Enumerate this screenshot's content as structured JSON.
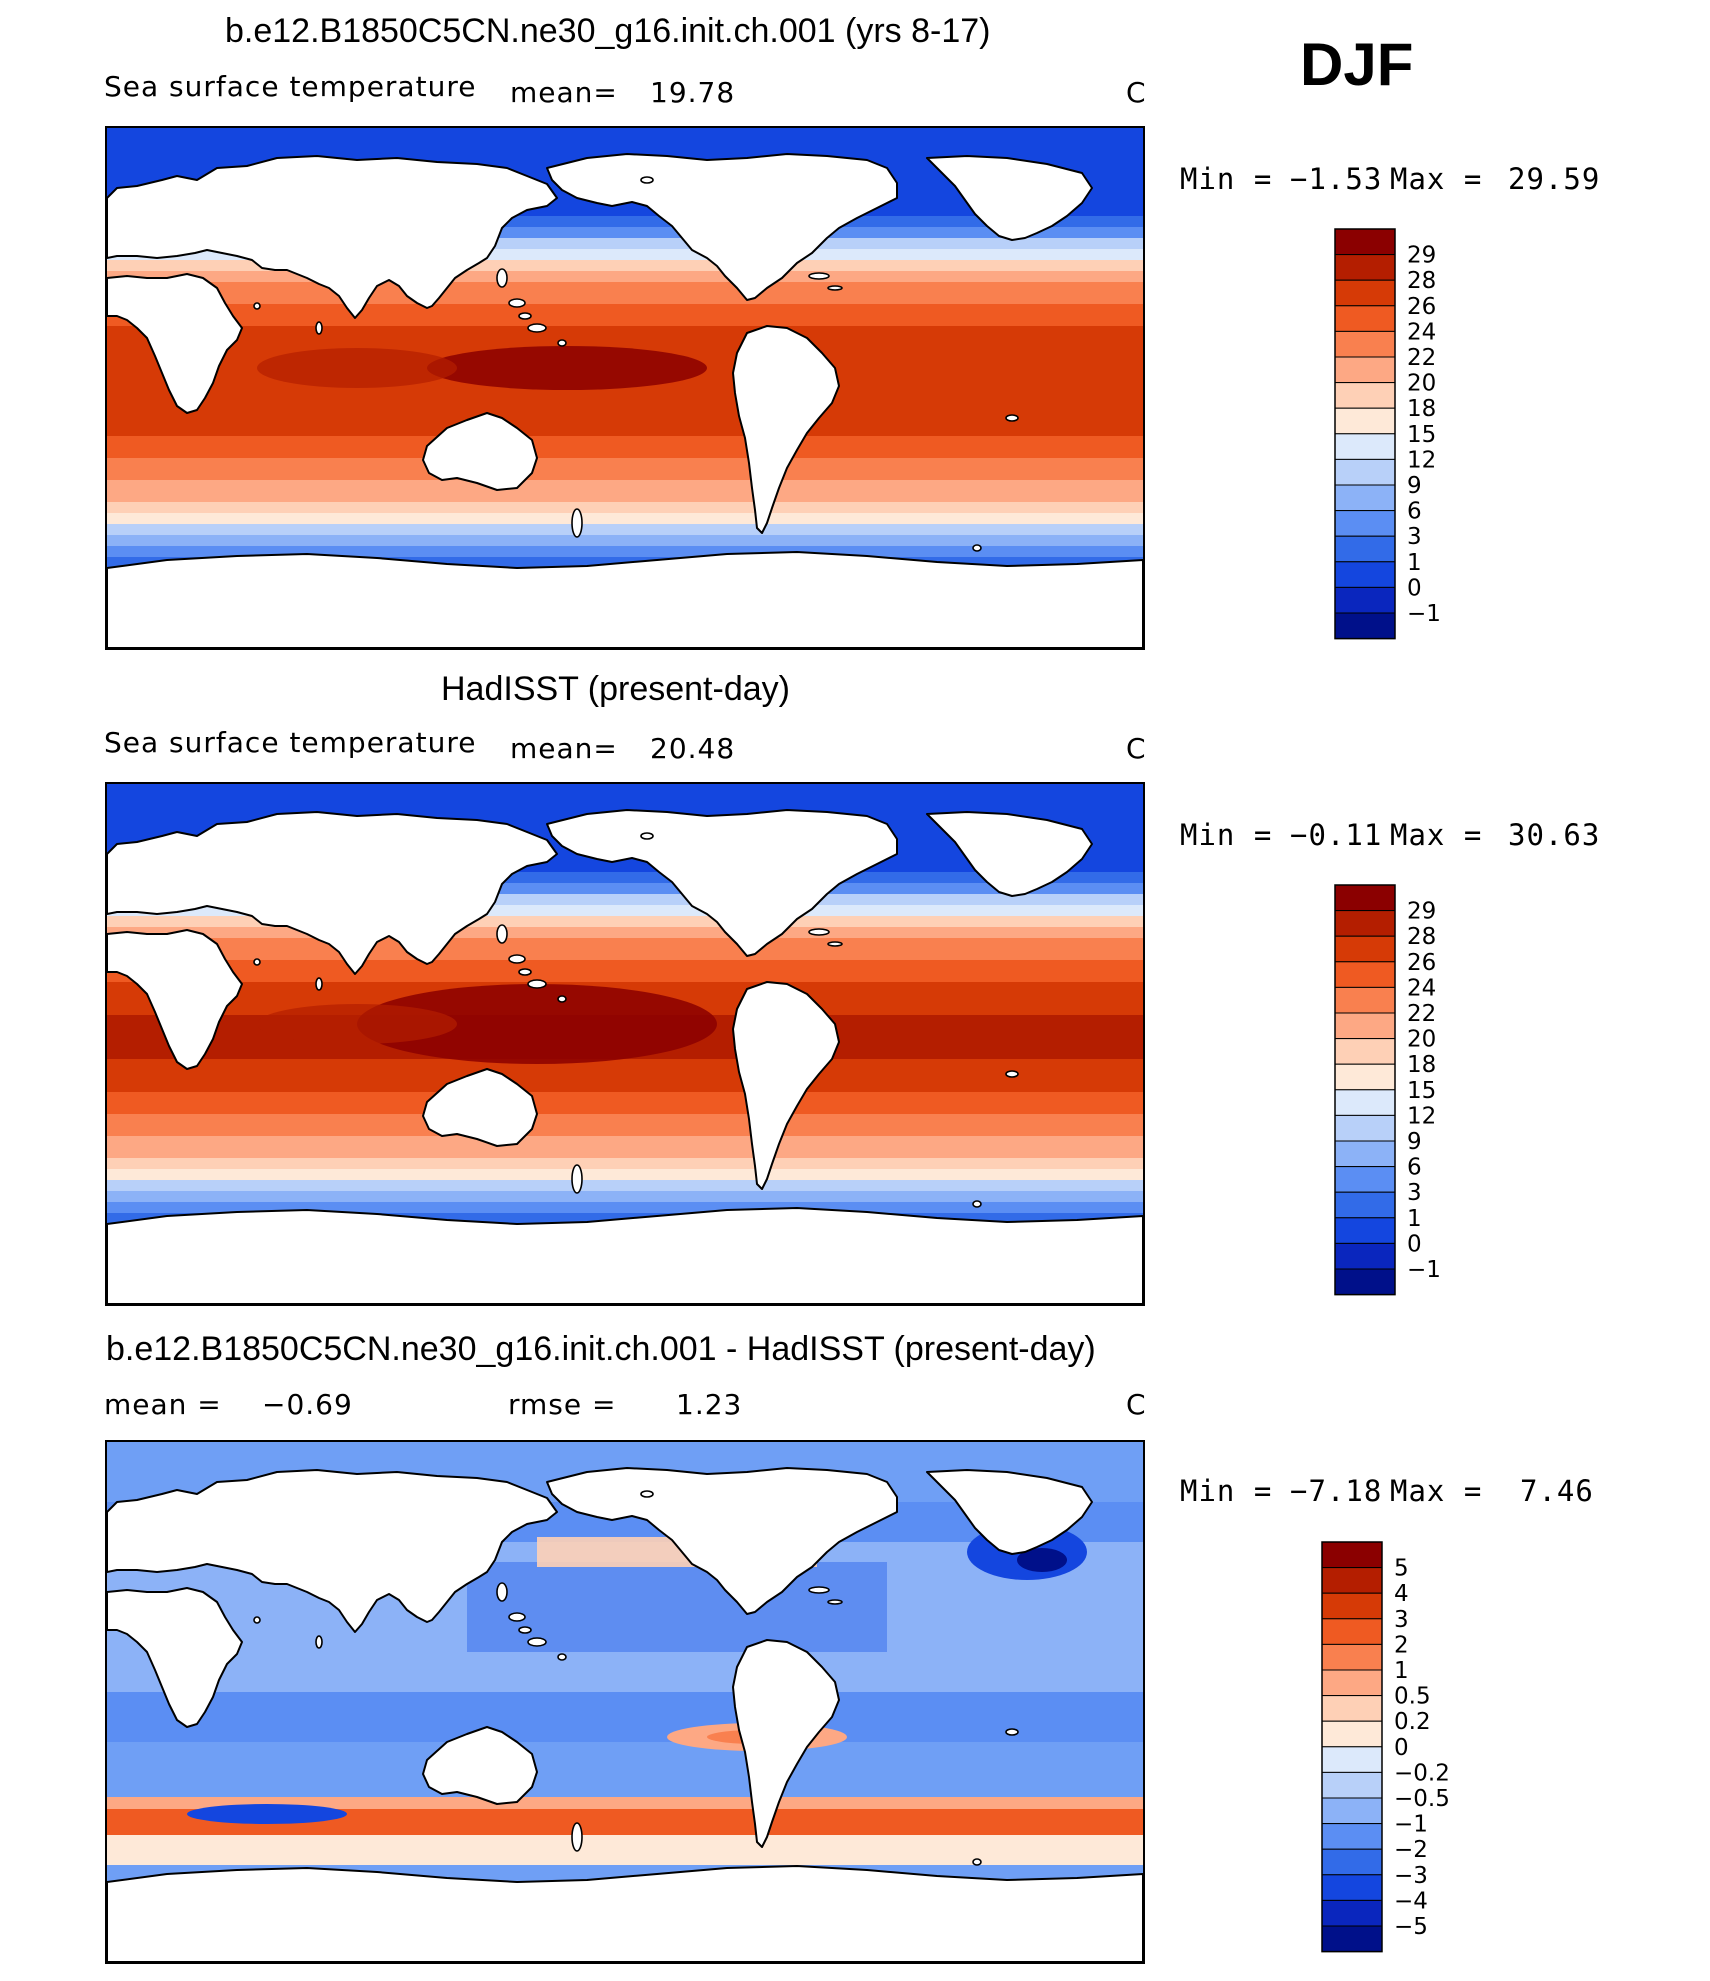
{
  "season": "DJF",
  "panels": [
    {
      "title": "b.e12.B1850C5CN.ne30_g16.init.ch.001 (yrs 8-17)",
      "variable": "Sea surface temperature",
      "stat1_label": "mean=",
      "stat1_value": "19.78",
      "stat2_label": "",
      "stat2_value": "",
      "units": "C",
      "min_label": "Min =",
      "min_value": "−1.53",
      "max_label": "Max =",
      "max_value": "29.59",
      "colorbar": {
        "colors": [
          "#8b0000",
          "#b41e00",
          "#d63a06",
          "#ef5a22",
          "#f9804f",
          "#fda884",
          "#fed0b6",
          "#fee9d8",
          "#dce9fb",
          "#b8d0f9",
          "#8cb2f7",
          "#5b8ef3",
          "#326be8",
          "#1446df",
          "#0a26be",
          "#00108a"
        ],
        "labels": [
          "29",
          "28",
          "26",
          "24",
          "22",
          "20",
          "18",
          "15",
          "12",
          "9",
          "6",
          "3",
          "1",
          "0",
          "−1"
        ]
      }
    },
    {
      "title": "HadISST (present-day)",
      "variable": "Sea surface temperature",
      "stat1_label": "mean=",
      "stat1_value": "20.48",
      "stat2_label": "",
      "stat2_value": "",
      "units": "C",
      "min_label": "Min =",
      "min_value": "−0.11",
      "max_label": "Max =",
      "max_value": "30.63",
      "colorbar": {
        "colors": [
          "#8b0000",
          "#b41e00",
          "#d63a06",
          "#ef5a22",
          "#f9804f",
          "#fda884",
          "#fed0b6",
          "#fee9d8",
          "#dce9fb",
          "#b8d0f9",
          "#8cb2f7",
          "#5b8ef3",
          "#326be8",
          "#1446df",
          "#0a26be",
          "#00108a"
        ],
        "labels": [
          "29",
          "28",
          "26",
          "24",
          "22",
          "20",
          "18",
          "15",
          "12",
          "9",
          "6",
          "3",
          "1",
          "0",
          "−1"
        ]
      }
    },
    {
      "title": "b.e12.B1850C5CN.ne30_g16.init.ch.001 - HadISST (present-day)",
      "variable": "",
      "stat1_label": "mean =",
      "stat1_value": "−0.69",
      "stat2_label": "rmse =",
      "stat2_value": "1.23",
      "units": "C",
      "min_label": "Min =",
      "min_value": "−7.18",
      "max_label": "Max =",
      "max_value": "7.46",
      "colorbar": {
        "colors": [
          "#8b0000",
          "#b41e00",
          "#d63a06",
          "#ef5a22",
          "#f9804f",
          "#fda884",
          "#fed0b6",
          "#fee9d8",
          "#dce9fb",
          "#b8d0f9",
          "#8cb2f7",
          "#5b8ef3",
          "#326be8",
          "#1446df",
          "#0a26be",
          "#00108a"
        ],
        "labels": [
          "5",
          "4",
          "3",
          "2",
          "1",
          "0.5",
          "0.2",
          "0",
          "−0.2",
          "−0.5",
          "−1",
          "−2",
          "−3",
          "−4",
          "−5"
        ]
      }
    }
  ]
}
